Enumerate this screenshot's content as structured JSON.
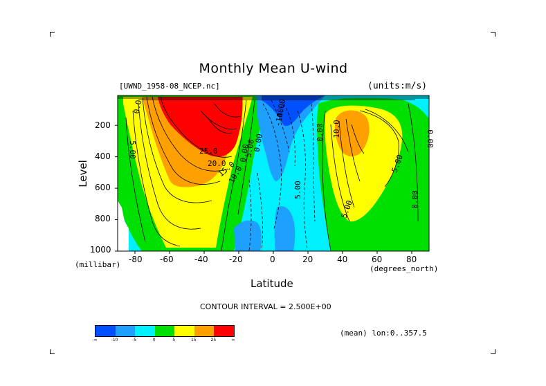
{
  "chart_data": {
    "type": "heatmap",
    "title": "Monthly Mean U-wind",
    "dataset_label": "[UWND_1958-08_NCEP.nc]",
    "units_label": "(units:m/s)",
    "xlabel": "Latitude",
    "xunits": "(degrees_north)",
    "ylabel": "Level",
    "yunits": "(millibar)",
    "xlim": [
      -90,
      90
    ],
    "ylim": [
      1000,
      10
    ],
    "x_ticks": [
      "-80",
      "-60",
      "-40",
      "-20",
      "0",
      "20",
      "40",
      "60",
      "80"
    ],
    "y_ticks": [
      "200",
      "400",
      "600",
      "800",
      "1000"
    ],
    "contour_interval": "CONTOUR INTERVAL = 2.500E+00",
    "contour_labels": [
      "0.0",
      "5.00",
      "10.0",
      "15.0",
      "20.0",
      "25.0",
      "0.00",
      "10.0",
      "5.00",
      "0.00",
      "5.00",
      "5.00",
      "0.00",
      "0.00",
      "5.00",
      "0.00",
      "-10.0",
      "10.0"
    ],
    "legend": {
      "colors": [
        "#0050ff",
        "#1ea0ff",
        "#00f0ff",
        "#00e000",
        "#ffff00",
        "#ffa000",
        "#ff0000"
      ],
      "tick_labels": [
        "-∞",
        "-10",
        "-5",
        "0",
        "5",
        "15",
        "25",
        "∞"
      ]
    },
    "footer_note": "(mean) lon:0..357.5"
  }
}
